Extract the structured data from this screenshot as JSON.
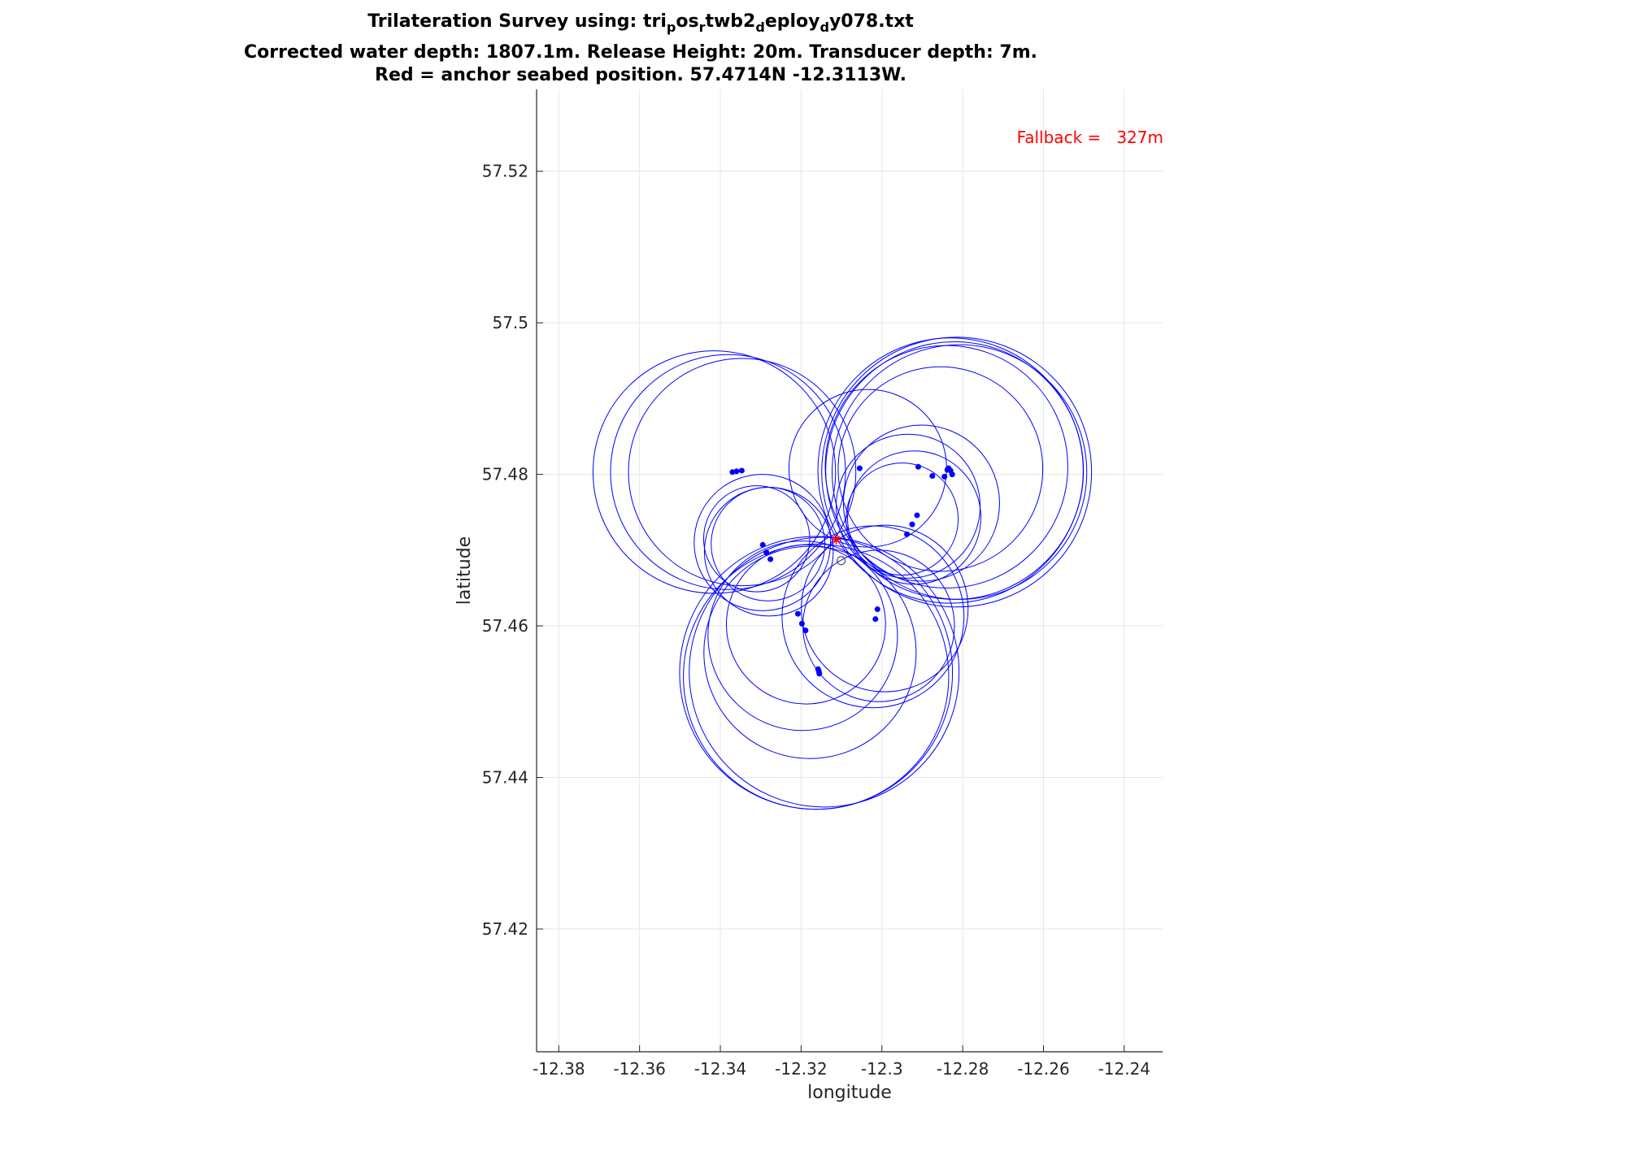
{
  "title": {
    "line1_prefix": "Trilateration Survey using: tri",
    "line1_parts": [
      "p",
      "os",
      "r",
      "twb2",
      "d",
      "eploy",
      "d",
      "y078.txt"
    ],
    "line2": "Corrected water depth: 1807.1m. Release Height: 20m. Transducer depth: 7m.",
    "line3": "Red = anchor seabed position. 57.4714N -12.3113W."
  },
  "annotation": "Fallback =   327m",
  "colors": {
    "circles": "#0000ff",
    "points": "#0000ff",
    "anchor": "#ff0000",
    "grid": "#e6e6e6",
    "axis": "#262626"
  },
  "chart_data": {
    "type": "scatter",
    "xlabel": "longitude",
    "ylabel": "latitude",
    "xlim": [
      -12.3855,
      -12.2305
    ],
    "ylim": [
      57.4038,
      57.5308
    ],
    "xticks": [
      -12.38,
      -12.36,
      -12.34,
      -12.32,
      -12.3,
      -12.28,
      -12.26,
      -12.24
    ],
    "yticks": [
      57.42,
      57.44,
      57.46,
      57.48,
      57.5,
      57.52
    ],
    "xtick_labels": [
      "-12.38",
      "-12.36",
      "-12.34",
      "-12.32",
      "-12.3",
      "-12.28",
      "-12.26",
      "-12.24"
    ],
    "ytick_labels": [
      "57.42",
      "57.44",
      "57.46",
      "57.48",
      "57.5",
      "57.52"
    ],
    "grid": true,
    "anchor": {
      "lon": -12.3113,
      "lat": 57.4714
    },
    "circles": [
      {
        "lon": -12.3415,
        "lat": 57.4803,
        "radius_lat": 0.016
      },
      {
        "lon": -12.3381,
        "lat": 57.4803,
        "radius_lat": 0.0155
      },
      {
        "lon": -12.3346,
        "lat": 57.4803,
        "radius_lat": 0.015
      },
      {
        "lon": -12.3296,
        "lat": 57.471,
        "radius_lat": 0.009
      },
      {
        "lon": -12.328,
        "lat": 57.4698,
        "radius_lat": 0.0085
      },
      {
        "lon": -12.3282,
        "lat": 57.4708,
        "radius_lat": 0.0075
      },
      {
        "lon": -12.331,
        "lat": 57.4715,
        "radius_lat": 0.007
      },
      {
        "lon": -12.3163,
        "lat": 57.4533,
        "radius_lat": 0.0175
      },
      {
        "lon": -12.3163,
        "lat": 57.4538,
        "radius_lat": 0.018
      },
      {
        "lon": -12.3143,
        "lat": 57.4539,
        "radius_lat": 0.0178
      },
      {
        "lon": -12.3178,
        "lat": 57.4565,
        "radius_lat": 0.014
      },
      {
        "lon": -12.3196,
        "lat": 57.4587,
        "radius_lat": 0.0125
      },
      {
        "lon": -12.3188,
        "lat": 57.4602,
        "radius_lat": 0.0105
      },
      {
        "lon": -12.3022,
        "lat": 57.4612,
        "radius_lat": 0.012
      },
      {
        "lon": -12.2993,
        "lat": 57.4623,
        "radius_lat": 0.011
      },
      {
        "lon": -12.3008,
        "lat": 57.46,
        "radius_lat": 0.01
      },
      {
        "lon": -12.295,
        "lat": 57.4741,
        "radius_lat": 0.0074
      },
      {
        "lon": -12.292,
        "lat": 57.4743,
        "radius_lat": 0.0088
      },
      {
        "lon": -12.2935,
        "lat": 57.4758,
        "radius_lat": 0.0095
      },
      {
        "lon": -12.2902,
        "lat": 57.4762,
        "radius_lat": 0.0103
      },
      {
        "lon": -12.3035,
        "lat": 57.4808,
        "radius_lat": 0.0104
      },
      {
        "lon": -12.2855,
        "lat": 57.4807,
        "radius_lat": 0.0135
      },
      {
        "lon": -12.2808,
        "lat": 57.4803,
        "radius_lat": 0.0168
      },
      {
        "lon": -12.283,
        "lat": 57.4805,
        "radius_lat": 0.0175
      },
      {
        "lon": -12.2815,
        "lat": 57.4803,
        "radius_lat": 0.0178
      },
      {
        "lon": -12.282,
        "lat": 57.4805,
        "radius_lat": 0.017
      },
      {
        "lon": -12.284,
        "lat": 57.481,
        "radius_lat": 0.016
      }
    ],
    "points": [
      {
        "lon": -12.337,
        "lat": 57.4803
      },
      {
        "lon": -12.336,
        "lat": 57.4804
      },
      {
        "lon": -12.3347,
        "lat": 57.4805
      },
      {
        "lon": -12.3295,
        "lat": 57.4707
      },
      {
        "lon": -12.3286,
        "lat": 57.4697
      },
      {
        "lon": -12.3276,
        "lat": 57.4688
      },
      {
        "lon": -12.3208,
        "lat": 57.4616
      },
      {
        "lon": -12.3198,
        "lat": 57.4603
      },
      {
        "lon": -12.3189,
        "lat": 57.4594
      },
      {
        "lon": -12.3158,
        "lat": 57.4543
      },
      {
        "lon": -12.3156,
        "lat": 57.454
      },
      {
        "lon": -12.3155,
        "lat": 57.4537
      },
      {
        "lon": -12.3011,
        "lat": 57.4622
      },
      {
        "lon": -12.3016,
        "lat": 57.4609
      },
      {
        "lon": -12.2938,
        "lat": 57.4721
      },
      {
        "lon": -12.2925,
        "lat": 57.4734
      },
      {
        "lon": -12.2913,
        "lat": 57.4746
      },
      {
        "lon": -12.3055,
        "lat": 57.4808
      },
      {
        "lon": -12.291,
        "lat": 57.481
      },
      {
        "lon": -12.2875,
        "lat": 57.4798
      },
      {
        "lon": -12.2845,
        "lat": 57.4797
      },
      {
        "lon": -12.2835,
        "lat": 57.4808
      },
      {
        "lon": -12.283,
        "lat": 57.4805
      },
      {
        "lon": -12.2826,
        "lat": 57.48
      },
      {
        "lon": -12.2838,
        "lat": 57.4806
      }
    ]
  }
}
